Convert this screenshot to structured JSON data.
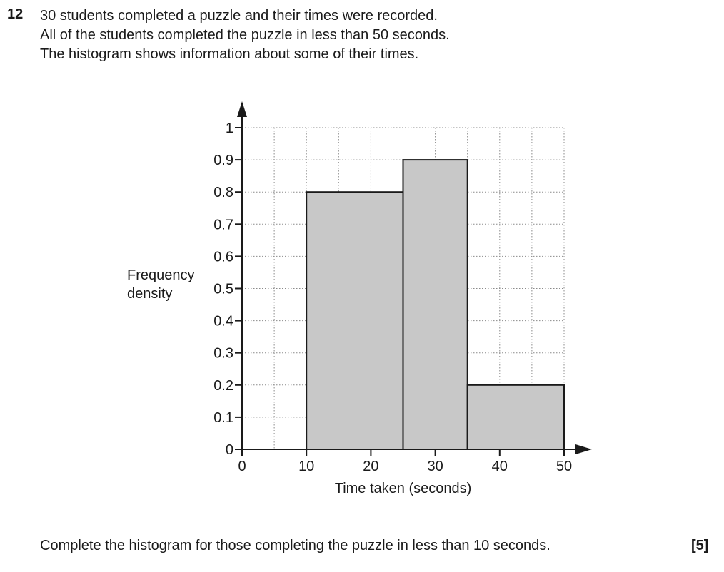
{
  "question": {
    "number": "12",
    "lines": [
      "30 students completed a puzzle and their times were recorded.",
      "All of the students completed the puzzle in less than 50 seconds.",
      "The histogram shows information about some of their times."
    ],
    "task": "Complete the histogram for those completing the puzzle in less than 10 seconds.",
    "marks": "[5]"
  },
  "chart_data": {
    "type": "bar",
    "xlabel": "Time taken (seconds)",
    "ylabel_lines": [
      "Frequency",
      "density"
    ],
    "xlim": [
      0,
      50
    ],
    "ylim": [
      0,
      1
    ],
    "x_ticks": [
      0,
      10,
      20,
      30,
      40,
      50
    ],
    "y_ticks": [
      "0",
      "0.1",
      "0.2",
      "0.3",
      "0.4",
      "0.5",
      "0.6",
      "0.7",
      "0.8",
      "0.9",
      "1"
    ],
    "grid": true,
    "bars": [
      {
        "x_start": 10,
        "x_end": 25,
        "frequency_density": 0.8
      },
      {
        "x_start": 25,
        "x_end": 35,
        "frequency_density": 0.9
      },
      {
        "x_start": 35,
        "x_end": 50,
        "frequency_density": 0.2
      }
    ],
    "colors": {
      "bar_fill": "#c8c8c8",
      "bar_stroke": "#1a1a1a",
      "grid": "#8a8a8a"
    }
  }
}
